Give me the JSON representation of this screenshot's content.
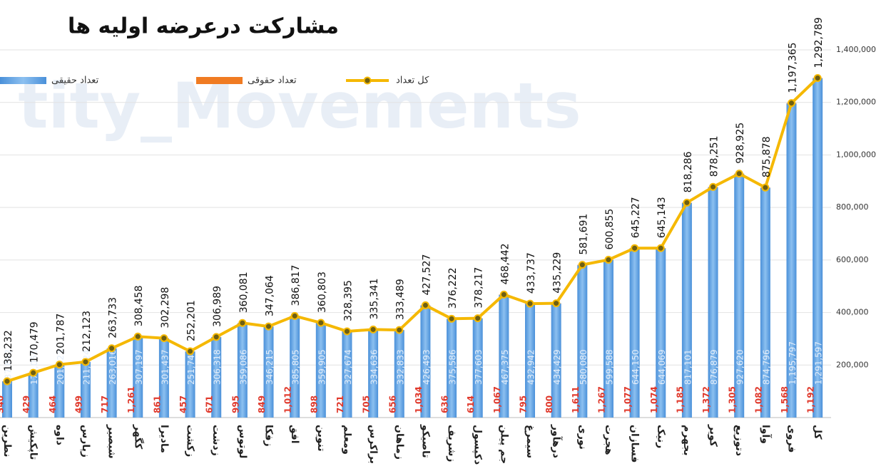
{
  "chart_data": {
    "type": "bar",
    "stacked": true,
    "grid": true,
    "title": "مشارکت درعرضه اولیه ها",
    "watermark": "tity_Movements",
    "categories": [
      "نطرین",
      "تاپکیش",
      "داوه",
      "زپارس",
      "شبصیر",
      "کگهر",
      "مادیرا",
      "زکشت",
      "زدشت",
      "لوتوس",
      "زفکا",
      "افق",
      "تنوین",
      "ومعلم",
      "براکرس",
      "زماهان",
      "تاصیکو",
      "زشریف",
      "دکپسول",
      "جم پیلن",
      "سیمرغ",
      "درهآور",
      "نوری",
      "هجرت",
      "فسازان",
      "رنیک",
      "بجهرم",
      "کویر",
      "دتوزیع",
      "وآوا",
      "فروی",
      "کل"
    ],
    "ylim": [
      0,
      1400000
    ],
    "yticks": [
      {
        "value": 200000,
        "label": "200,000"
      },
      {
        "value": 400000,
        "label": "400,000"
      },
      {
        "value": 600000,
        "label": "600,000"
      },
      {
        "value": 800000,
        "label": "800,000"
      },
      {
        "value": 1000000,
        "label": "1,000,000"
      },
      {
        "value": 1200000,
        "label": "1,200,000"
      },
      {
        "value": 1400000,
        "label": "1,400,000"
      }
    ],
    "series": [
      {
        "name": "تعداد حقیقی",
        "type": "bar",
        "color": "#4a90d9",
        "values": [
          137892,
          170050,
          201323,
          211624,
          263016,
          307197,
          301437,
          251744,
          306318,
          359086,
          346215,
          385805,
          359905,
          327674,
          334636,
          332833,
          426493,
          375586,
          377603,
          467375,
          432942,
          434429,
          580080,
          599588,
          644150,
          644069,
          817101,
          876879,
          927620,
          874796,
          1195797,
          1291597
        ],
        "value_labels": [
          "137,892",
          "170,050",
          "201,323",
          "211,624",
          "263,016",
          "307,197",
          "301,437",
          "251,744",
          "306,318",
          "359,086",
          "346,215",
          "385,805",
          "359,905",
          "327,674",
          "334,636",
          "332,833",
          "426,493",
          "375,586",
          "377,603",
          "467,375",
          "432,942",
          "434,429",
          "580,080",
          "599,588",
          "644,150",
          "644,069",
          "817,101",
          "876,879",
          "927,620",
          "874,796",
          "1,195,797",
          "1,291,597"
        ]
      },
      {
        "name": "تعداد حقوقی",
        "type": "bar",
        "color": "#f07b22",
        "values": [
          340,
          429,
          464,
          499,
          717,
          1261,
          861,
          457,
          671,
          995,
          849,
          1012,
          898,
          721,
          705,
          656,
          1034,
          636,
          614,
          1067,
          795,
          800,
          1611,
          1267,
          1077,
          1074,
          1185,
          1372,
          1305,
          1082,
          1568,
          1192
        ],
        "value_labels": [
          "340",
          "429",
          "464",
          "499",
          "717",
          "1,261",
          "861",
          "457",
          "671",
          "995",
          "849",
          "1,012",
          "898",
          "721",
          "705",
          "656",
          "1,034",
          "636",
          "614",
          "1,067",
          "795",
          "800",
          "1,611",
          "1,267",
          "1,077",
          "1,074",
          "1,185",
          "1,372",
          "1,305",
          "1,082",
          "1,568",
          "1,192"
        ]
      },
      {
        "name": "کل تعداد",
        "type": "line",
        "color": "#f5b800",
        "values": [
          138232,
          170479,
          201787,
          212123,
          263733,
          308458,
          302298,
          252201,
          306989,
          360081,
          347064,
          386817,
          360803,
          328395,
          335341,
          333489,
          427527,
          376222,
          378217,
          468442,
          433737,
          435229,
          581691,
          600855,
          645227,
          645143,
          818286,
          878251,
          928925,
          875878,
          1197365,
          1292789
        ],
        "value_labels": [
          "138,232",
          "170,479",
          "201,787",
          "212,123",
          "263,733",
          "308,458",
          "302,298",
          "252,201",
          "306,989",
          "360,081",
          "347,064",
          "386,817",
          "360,803",
          "328,395",
          "335,341",
          "333,489",
          "427,527",
          "376,222",
          "378,217",
          "468,442",
          "433,737",
          "435,229",
          "581,691",
          "600,855",
          "645,227",
          "645,143",
          "818,286",
          "878,251",
          "928,925",
          "875,878",
          "1,197,365",
          "1,292,789"
        ]
      }
    ]
  }
}
